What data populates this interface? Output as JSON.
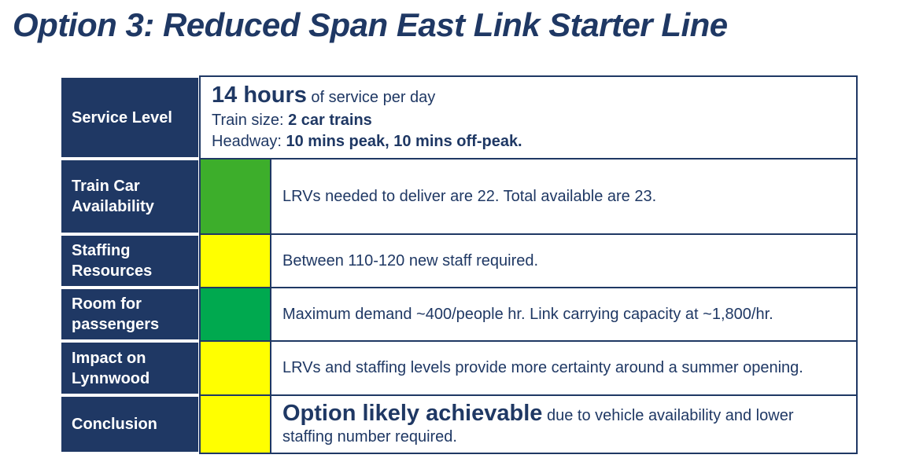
{
  "page": {
    "title": "Option 3: Reduced Span East Link Starter Line"
  },
  "colors": {
    "navy": "#1f3864",
    "bright_green": "#3dae2b",
    "emerald_green": "#00a94f",
    "yellow": "#ffff00"
  },
  "table": {
    "rows": [
      {
        "label": "Service Level",
        "status": null,
        "content": {
          "hours_big": "14 hours",
          "hours_rest": " of service per day",
          "train_label": "Train size: ",
          "train_bold": "2 car trains",
          "headway_label": "Headway: ",
          "headway_bold": "10 mins peak, 10 mins off-peak."
        }
      },
      {
        "label": "Train Car Availability",
        "status": "green",
        "status_color": "#3dae2b",
        "content": "LRVs needed to deliver are 22. Total available are 23."
      },
      {
        "label": "Staffing Resources",
        "status": "yellow",
        "status_color": "#ffff00",
        "content": "Between 110-120 new staff required."
      },
      {
        "label": "Room for passengers",
        "status": "green",
        "status_color": "#00a94f",
        "content": "Maximum demand ~400/people hr. Link carrying capacity at ~1,800/hr."
      },
      {
        "label": "Impact on Lynnwood",
        "status": "yellow",
        "status_color": "#ffff00",
        "content": "LRVs and staffing levels provide more certainty around a summer opening."
      },
      {
        "label": "Conclusion",
        "status": "yellow",
        "status_color": "#ffff00",
        "content_bold": "Option likely achievable",
        "content_rest": " due to vehicle availability and lower staffing number required."
      }
    ]
  }
}
